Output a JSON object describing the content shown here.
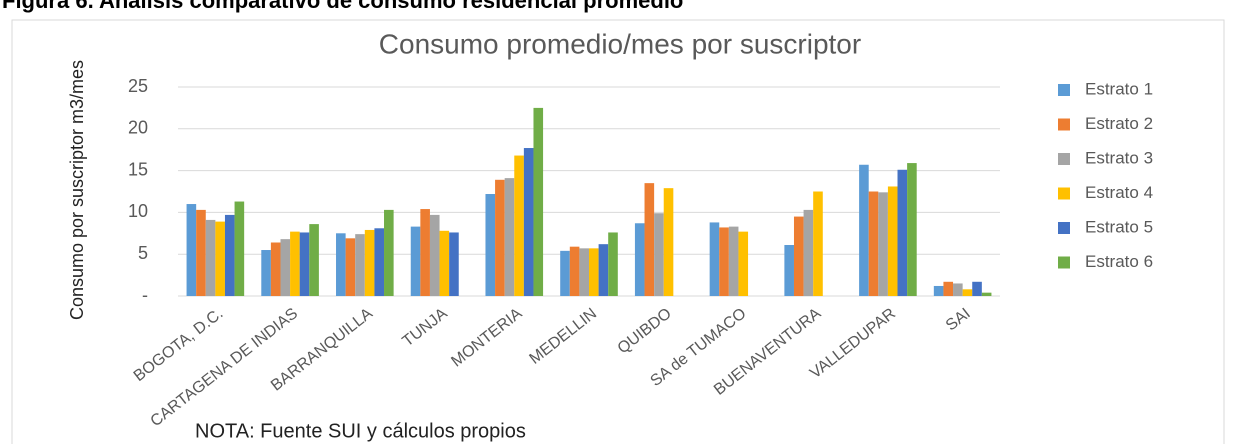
{
  "heading": "Figura 6. Análisis comparativo de consumo residencial promedio",
  "chart_data": {
    "type": "bar",
    "title": "Consumo promedio/mes por suscriptor",
    "y_label": "Consumo por suscriptor m3/mes",
    "note": "NOTA: Fuente SUI y cálculos propios",
    "categories": [
      "BOGOTA, D.C.",
      "CARTAGENA DE INDIAS",
      "BARRANQUILLA",
      "TUNJA",
      "MONTERIA",
      "MEDELLIN",
      "QUIBDO",
      "SA de TUMACO",
      "BUENAVENTURA",
      "VALLEDUPAR",
      "SAI"
    ],
    "series": [
      {
        "name": "Estrato 1",
        "color": "#5b9bd5",
        "values": [
          11,
          5.5,
          7.5,
          8.3,
          12.2,
          5.4,
          8.7,
          8.8,
          6.1,
          15.7,
          1.2
        ]
      },
      {
        "name": "Estrato 2",
        "color": "#ed7d31",
        "values": [
          10.3,
          6.4,
          6.9,
          10.4,
          13.9,
          5.9,
          13.5,
          8.2,
          9.5,
          12.5,
          1.7
        ]
      },
      {
        "name": "Estrato 3",
        "color": "#a5a5a5",
        "values": [
          9.1,
          6.8,
          7.4,
          9.7,
          14.1,
          5.7,
          9.9,
          8.3,
          10.3,
          12.4,
          1.5
        ]
      },
      {
        "name": "Estrato 4",
        "color": "#ffc000",
        "values": [
          8.9,
          7.7,
          7.9,
          7.8,
          16.8,
          5.7,
          12.9,
          7.7,
          12.5,
          13.1,
          0.8
        ]
      },
      {
        "name": "Estrato 5",
        "color": "#4472c4",
        "values": [
          9.7,
          7.6,
          8.1,
          7.6,
          17.7,
          6.2,
          null,
          null,
          null,
          15.1,
          1.7
        ]
      },
      {
        "name": "Estrato 6",
        "color": "#70ad47",
        "values": [
          11.3,
          8.6,
          10.3,
          null,
          22.5,
          7.6,
          null,
          null,
          null,
          15.9,
          0.4
        ]
      }
    ],
    "ylim": [
      0,
      25
    ],
    "yticks": [
      {
        "value": 0,
        "label": "-"
      },
      5,
      10,
      15,
      20,
      25
    ],
    "grid": true,
    "legend": "right"
  }
}
